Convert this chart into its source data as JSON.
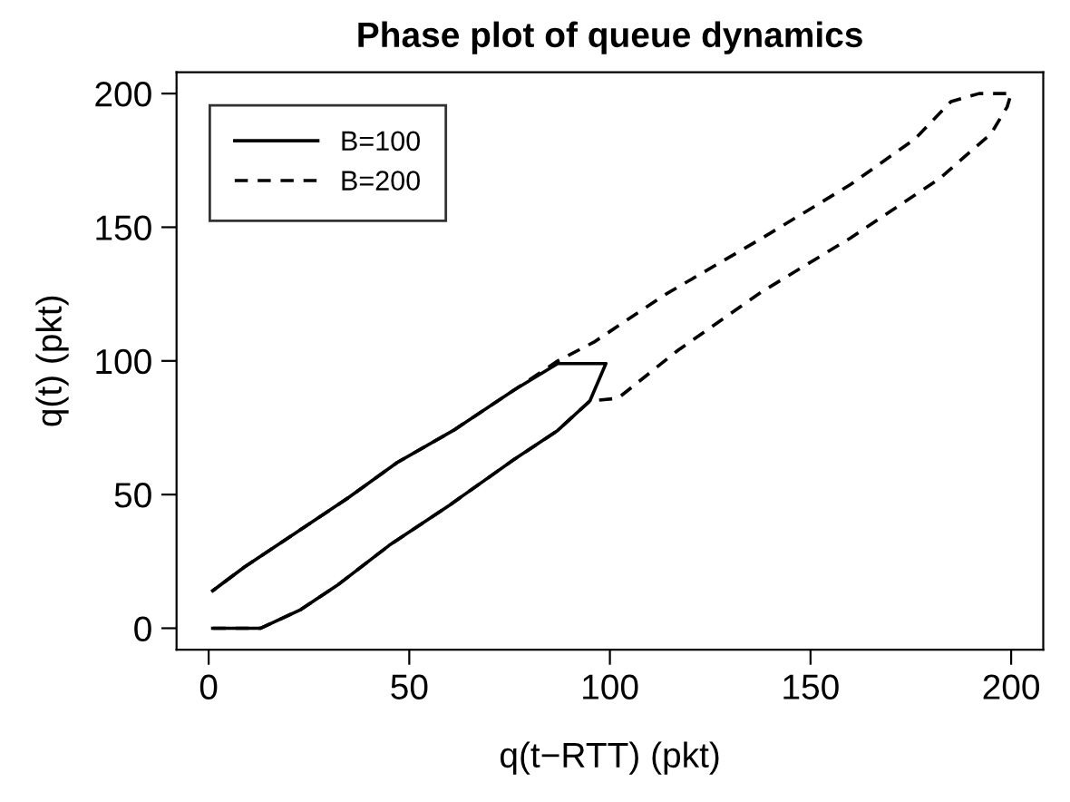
{
  "chart_data": {
    "type": "line",
    "title": "Phase plot of queue dynamics",
    "xlabel": "q(t−RTT) (pkt)",
    "ylabel": "q(t) (pkt)",
    "series": [
      {
        "name": "B=100",
        "color": "#000000",
        "line_style": "solid",
        "x": [
          1,
          13,
          23,
          32,
          45,
          60,
          76,
          87,
          95,
          99,
          87,
          76,
          61,
          47,
          35,
          22,
          9,
          1
        ],
        "values": [
          0,
          0,
          7,
          16,
          31,
          46,
          63,
          74,
          85,
          99,
          99,
          89,
          74,
          62,
          49,
          36,
          23,
          14
        ]
      },
      {
        "name": "B=200",
        "color": "#000000",
        "line_style": "dashed",
        "x": [
          1,
          13,
          23,
          32,
          45,
          60,
          76,
          87,
          95,
          102,
          117,
          138,
          160,
          182,
          195,
          199,
          200,
          192,
          185,
          176,
          160,
          138,
          114,
          96,
          87,
          76,
          61,
          47,
          35,
          22,
          9,
          1
        ],
        "values": [
          0,
          0,
          7,
          16,
          31,
          46,
          63,
          74,
          85,
          86,
          104,
          126,
          146,
          168,
          185,
          195,
          200,
          200,
          197,
          183,
          166,
          146,
          125,
          107,
          100,
          89,
          74,
          62,
          49,
          36,
          23,
          14
        ]
      }
    ],
    "xlim": [
      -8,
      208
    ],
    "ylim": [
      -8,
      208
    ],
    "xticks": [
      0,
      50,
      100,
      150,
      200
    ],
    "yticks": [
      0,
      50,
      100,
      150,
      200
    ],
    "grid": false,
    "legend": "top left",
    "marker": "none"
  }
}
